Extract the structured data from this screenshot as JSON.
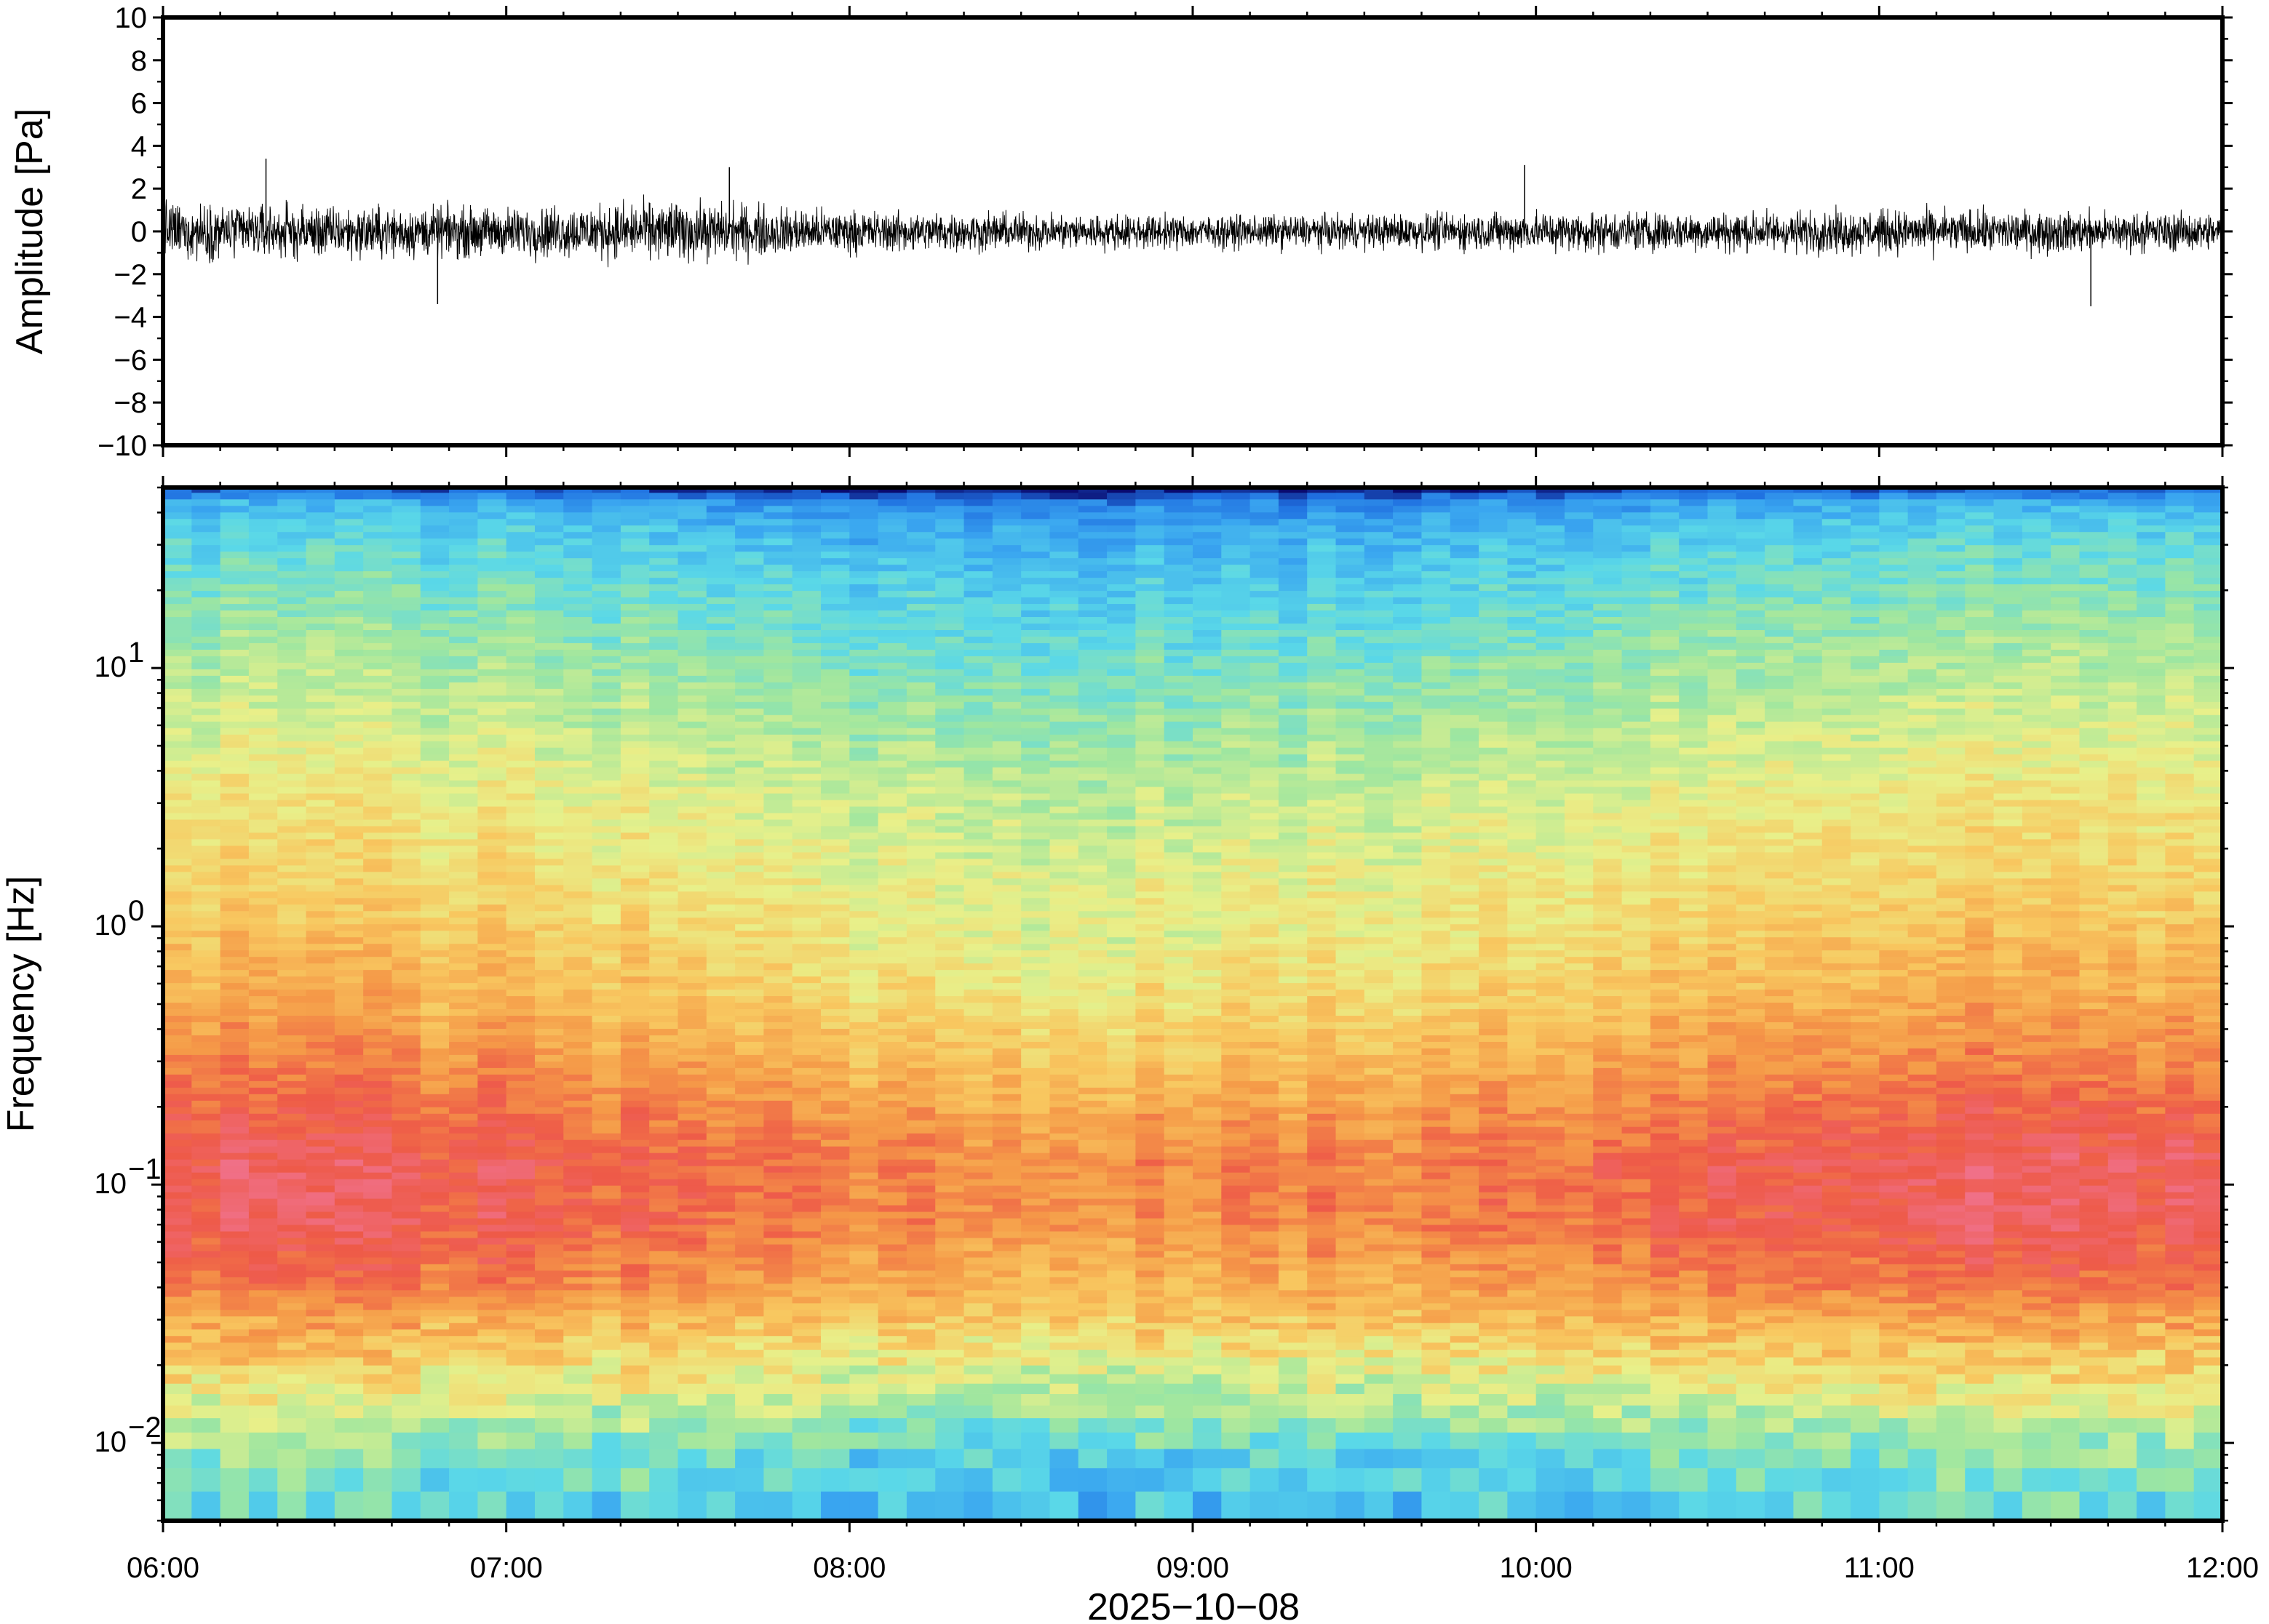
{
  "chart_data": [
    {
      "type": "line",
      "panel": "waveform",
      "ylabel": "Amplitude [Pa]",
      "ylim": [
        -10,
        10
      ],
      "yticks": [
        10,
        8,
        6,
        4,
        2,
        0,
        -2,
        -4,
        -6,
        -8,
        -10
      ],
      "ytick_labels": [
        "10",
        "8",
        "6",
        "4",
        "2",
        "0",
        "−2",
        "−4",
        "−6",
        "−8",
        "−10"
      ],
      "x": [
        "06:00",
        "06:30",
        "07:00",
        "07:30",
        "08:00",
        "08:30",
        "09:00",
        "09:30",
        "10:00",
        "10:30",
        "11:00",
        "11:30",
        "12:00"
      ],
      "series": [
        {
          "envelope_max": [
            2.6,
            2.2,
            2.1,
            2.7,
            1.8,
            1.6,
            1.4,
            1.5,
            1.8,
            1.7,
            1.9,
            1.8,
            1.6
          ],
          "envelope_min": [
            -2.5,
            -2.4,
            -2.2,
            -2.6,
            -1.9,
            -1.7,
            -1.5,
            -1.5,
            -1.8,
            -1.8,
            -2.0,
            -1.9,
            -1.7
          ],
          "peaks": [
            {
              "time": "06:18",
              "value": 3.4
            },
            {
              "time": "06:48",
              "value": -3.4
            },
            {
              "time": "07:39",
              "value": 3.0
            },
            {
              "time": "09:58",
              "value": 3.1
            },
            {
              "time": "11:37",
              "value": -3.5
            }
          ]
        }
      ],
      "grid": false
    },
    {
      "type": "heatmap",
      "panel": "spectrogram",
      "ylabel": "Frequency [Hz]",
      "xlabel": "2025−10−08",
      "y_scale": "log",
      "ylim": [
        0.005,
        50
      ],
      "yticks": [
        {
          "value": 10,
          "base": "10",
          "exp": "1"
        },
        {
          "value": 1,
          "base": "10",
          "exp": "0"
        },
        {
          "value": 0.1,
          "base": "10",
          "exp": "−1"
        },
        {
          "value": 0.01,
          "base": "10",
          "exp": "−2"
        }
      ],
      "xlim": [
        "06:00",
        "12:00"
      ],
      "xticks": [
        "06:00",
        "07:00",
        "08:00",
        "09:00",
        "10:00",
        "11:00",
        "12:00"
      ],
      "colormap": [
        "#0a0a6e",
        "#1f6fe0",
        "#3aa6f0",
        "#5ad8e8",
        "#9ee6a0",
        "#e8f08a",
        "#f8c860",
        "#f59a48",
        "#ee5a48",
        "#f07088"
      ],
      "frequency_bands": [
        {
          "from_hz": 40,
          "to_hz": 50,
          "description": "deep-blue"
        },
        {
          "from_hz": 10,
          "to_hz": 40,
          "description": "blue-cyan"
        },
        {
          "from_hz": 2,
          "to_hz": 10,
          "description": "green-yellow"
        },
        {
          "from_hz": 0.2,
          "to_hz": 2,
          "description": "yellow-orange"
        },
        {
          "from_hz": 0.04,
          "to_hz": 0.2,
          "description": "red"
        },
        {
          "from_hz": 0.015,
          "to_hz": 0.04,
          "description": "orange-yellow"
        },
        {
          "from_hz": 0.005,
          "to_hz": 0.015,
          "description": "green-cyan"
        }
      ],
      "grid": false
    }
  ]
}
